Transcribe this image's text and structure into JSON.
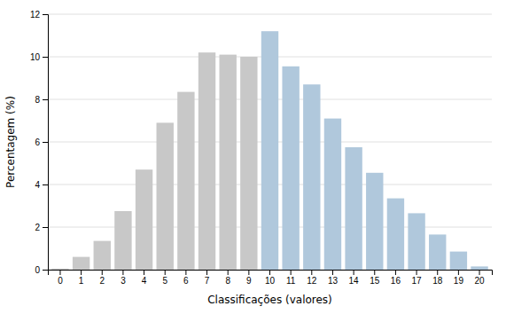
{
  "chart_data": {
    "type": "bar",
    "categories": [
      0,
      1,
      2,
      3,
      4,
      5,
      6,
      7,
      8,
      9,
      10,
      11,
      12,
      13,
      14,
      15,
      16,
      17,
      18,
      19,
      20
    ],
    "values": [
      0.05,
      0.6,
      1.35,
      2.75,
      4.7,
      6.9,
      8.35,
      10.2,
      10.1,
      10.0,
      11.2,
      9.55,
      8.7,
      7.1,
      5.75,
      4.55,
      3.35,
      2.65,
      1.65,
      0.85,
      0.15
    ],
    "colors": [
      "#c8c8c8",
      "#c8c8c8",
      "#c8c8c8",
      "#c8c8c8",
      "#c8c8c8",
      "#c8c8c8",
      "#c8c8c8",
      "#c8c8c8",
      "#c8c8c8",
      "#c8c8c8",
      "#b0c8dc",
      "#b0c8dc",
      "#b0c8dc",
      "#b0c8dc",
      "#b0c8dc",
      "#b0c8dc",
      "#b0c8dc",
      "#b0c8dc",
      "#b0c8dc",
      "#b0c8dc",
      "#b0c8dc"
    ],
    "xlabel": "Classificações (valores)",
    "ylabel": "Percentagem (%)",
    "ylim": [
      0,
      12
    ],
    "yticks": [
      0,
      2,
      4,
      6,
      8,
      10,
      12
    ],
    "grid": true
  }
}
